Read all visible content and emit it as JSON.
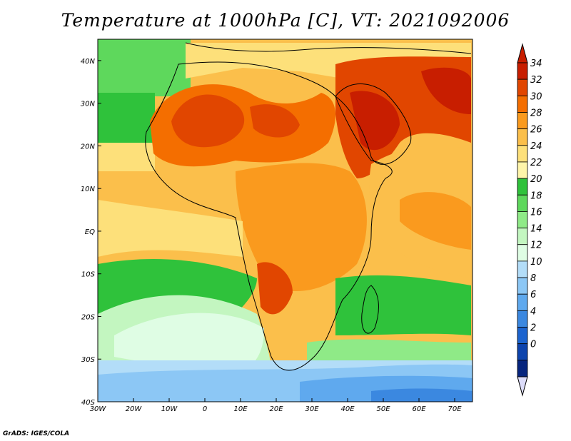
{
  "title": "Temperature at 1000hPa [C], VT: 2021092006",
  "footer": "GrADS: IGES/COLA",
  "map": {
    "lon_labels": [
      "30W",
      "20W",
      "10W",
      "0",
      "10E",
      "20E",
      "30E",
      "40E",
      "50E",
      "60E",
      "70E"
    ],
    "lat_labels": [
      "40N",
      "30N",
      "20N",
      "10N",
      "EQ",
      "10S",
      "20S",
      "30S",
      "40S"
    ],
    "lon_range": [
      -30,
      75
    ],
    "lat_range": [
      -40,
      45
    ]
  },
  "colorbar": {
    "labels": [
      "34",
      "32",
      "30",
      "28",
      "26",
      "24",
      "22",
      "20",
      "18",
      "16",
      "14",
      "12",
      "10",
      "8",
      "6",
      "4",
      "2",
      "0"
    ],
    "colors": [
      "#c81e00",
      "#e14600",
      "#f46e00",
      "#fa9a1e",
      "#fbbf4b",
      "#fde07a",
      "#fff5aa",
      "#2fc23b",
      "#5ed85c",
      "#8fea87",
      "#c3f6c0",
      "#dffde4",
      "#b3ddf8",
      "#8cc7f5",
      "#5fa9ee",
      "#3b88e0",
      "#1c64cf",
      "#0d44ad",
      "#06257e"
    ],
    "max_triangle_color": "#c81e00",
    "min_triangle_color": "#dcdcfa"
  }
}
